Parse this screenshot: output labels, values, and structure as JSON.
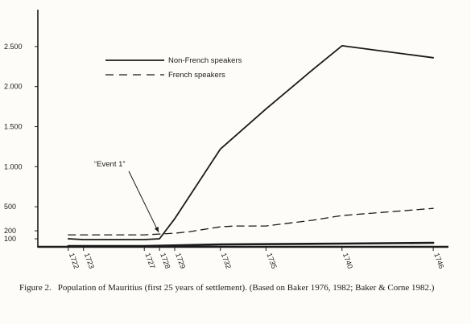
{
  "chart_data": {
    "type": "line",
    "x": [
      1722,
      1723,
      1727,
      1728,
      1729,
      1732,
      1735,
      1740,
      1746
    ],
    "x_tick_labels": [
      "1722",
      "1723",
      "1727",
      "1728",
      "1729",
      "1732",
      "1735",
      "1740",
      "1746"
    ],
    "y_ticks": [
      100,
      200,
      500,
      1000,
      1500,
      2000,
      2500
    ],
    "y_tick_labels": [
      "100",
      "200",
      "500",
      "1.000",
      "1.500",
      "2.000",
      "2.500"
    ],
    "ylim": [
      0,
      2900
    ],
    "series": [
      {
        "name": "Non-French speakers",
        "style": "solid",
        "points": [
          [
            1722,
            100
          ],
          [
            1723,
            90
          ],
          [
            1727,
            90
          ],
          [
            1728,
            100
          ],
          [
            1729,
            350
          ],
          [
            1732,
            1220
          ],
          [
            1735,
            1720
          ],
          [
            1738,
            2200
          ],
          [
            1740,
            2510
          ],
          [
            1746,
            2360
          ]
        ]
      },
      {
        "name": "French speakers",
        "style": "dashed",
        "points": [
          [
            1722,
            150
          ],
          [
            1723,
            150
          ],
          [
            1727,
            150
          ],
          [
            1728,
            160
          ],
          [
            1729,
            170
          ],
          [
            1730,
            190
          ],
          [
            1732,
            250
          ],
          [
            1733,
            260
          ],
          [
            1735,
            260
          ],
          [
            1738,
            330
          ],
          [
            1740,
            390
          ],
          [
            1746,
            480
          ]
        ]
      },
      {
        "name": "",
        "style": "solid-thick",
        "points": [
          [
            1722,
            10
          ],
          [
            1727,
            10
          ],
          [
            1732,
            30
          ],
          [
            1740,
            40
          ],
          [
            1746,
            50
          ]
        ]
      }
    ],
    "legend_position": "top-left",
    "annotation": {
      "text": "“Event 1”",
      "x": 1728,
      "y": 100
    },
    "grid": false
  },
  "caption": {
    "label": "Figure 2.",
    "text": "Population of Mauritius (first 25 years of settlement). (Based on Baker 1976, 1982; Baker & Corne 1982.)"
  },
  "colors": {
    "ink": "#1a1a1a",
    "paper": "#fdfcf8"
  }
}
